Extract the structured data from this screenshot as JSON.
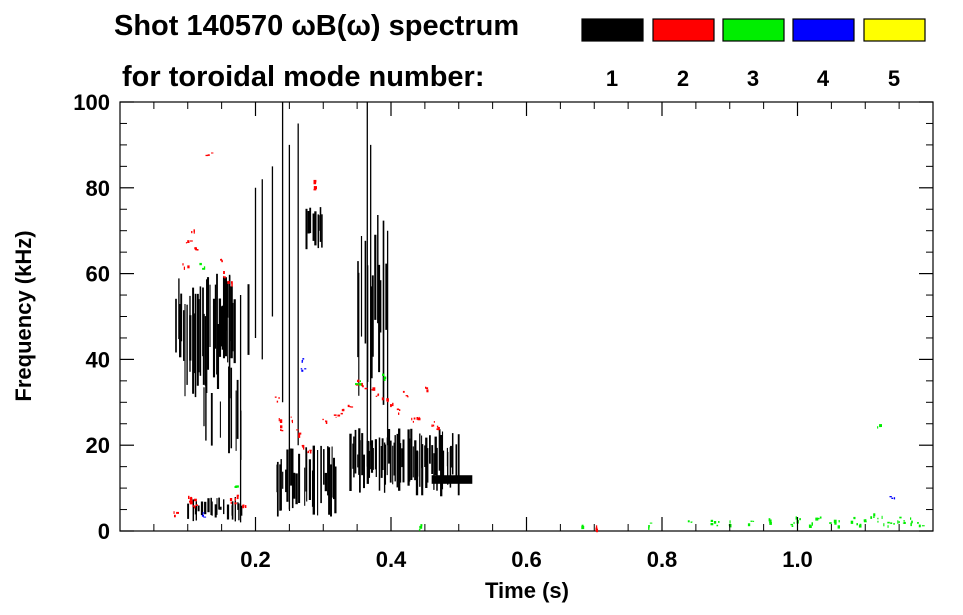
{
  "chart_data": {
    "type": "heatmap",
    "title_line1": "Shot 140570 ωB(ω) spectrum",
    "title_line2": "for toroidal mode number:",
    "xlabel": "Time (s)",
    "ylabel": "Frequency (kHz)",
    "xlim": [
      0.0,
      1.2
    ],
    "ylim": [
      0,
      100
    ],
    "x_ticks": [
      0.2,
      0.4,
      0.6,
      0.8,
      1.0
    ],
    "x_tick_labels": [
      "0.2",
      "0.4",
      "0.6",
      "0.8",
      "1.0"
    ],
    "y_ticks": [
      0,
      20,
      40,
      60,
      80,
      100
    ],
    "y_tick_labels": [
      "0",
      "20",
      "40",
      "60",
      "80",
      "100"
    ],
    "legend": {
      "placement": "top",
      "entries": [
        {
          "mode": "1",
          "color": "#000000"
        },
        {
          "mode": "2",
          "color": "#ff0000"
        },
        {
          "mode": "3",
          "color": "#00ee00"
        },
        {
          "mode": "4",
          "color": "#0000ff"
        },
        {
          "mode": "5",
          "color": "#ffff00"
        }
      ]
    },
    "series": [
      {
        "name": "1",
        "color": "#000000",
        "regions": [
          {
            "t0": 0.08,
            "t1": 0.17,
            "f0": 30,
            "f1": 60,
            "density": 0.85
          },
          {
            "t0": 0.12,
            "t1": 0.18,
            "f0": 10,
            "f1": 40,
            "density": 0.45
          },
          {
            "t0": 0.1,
            "t1": 0.18,
            "f0": 2,
            "f1": 8,
            "density": 0.6
          },
          {
            "t0": 0.15,
            "t1": 0.19,
            "f0": 40,
            "f1": 60,
            "density": 0.4
          },
          {
            "t0": 0.23,
            "t1": 0.32,
            "f0": 3,
            "f1": 20,
            "density": 0.85
          },
          {
            "t0": 0.27,
            "t1": 0.3,
            "f0": 65,
            "f1": 77,
            "density": 0.7
          },
          {
            "t0": 0.34,
            "t1": 0.5,
            "f0": 8,
            "f1": 24,
            "density": 0.9
          },
          {
            "t0": 0.35,
            "t1": 0.4,
            "f0": 28,
            "f1": 75,
            "density": 0.5
          }
        ],
        "streaks": [
          {
            "t": 0.2,
            "f0": 45,
            "f1": 80
          },
          {
            "t": 0.21,
            "f0": 40,
            "f1": 82
          },
          {
            "t": 0.225,
            "f0": 50,
            "f1": 85
          },
          {
            "t": 0.25,
            "f0": 5,
            "f1": 90
          },
          {
            "t": 0.263,
            "f0": 20,
            "f1": 95
          },
          {
            "t": 0.365,
            "f0": 15,
            "f1": 100
          },
          {
            "t": 0.37,
            "f0": 20,
            "f1": 90
          },
          {
            "t": 0.395,
            "f0": 20,
            "f1": 70
          },
          {
            "t": 0.24,
            "f0": 30,
            "f1": 100
          },
          {
            "t": 0.178,
            "f0": 2,
            "f1": 55
          }
        ],
        "band": {
          "t0": 0.46,
          "t1": 0.52,
          "f": 12,
          "w": 2
        }
      },
      {
        "name": "2",
        "color": "#ff0000",
        "points": [
          [
            0.1,
            68
          ],
          [
            0.105,
            70
          ],
          [
            0.11,
            66
          ],
          [
            0.095,
            62
          ],
          [
            0.15,
            63
          ],
          [
            0.16,
            58
          ],
          [
            0.155,
            60
          ],
          [
            0.13,
            88
          ],
          [
            0.285,
            82
          ],
          [
            0.29,
            80
          ],
          [
            0.25,
            26
          ],
          [
            0.26,
            23
          ],
          [
            0.27,
            20
          ],
          [
            0.28,
            19
          ],
          [
            0.24,
            24
          ],
          [
            0.32,
            27
          ],
          [
            0.33,
            28
          ],
          [
            0.35,
            35
          ],
          [
            0.36,
            34
          ],
          [
            0.37,
            33
          ],
          [
            0.38,
            32
          ],
          [
            0.39,
            31
          ],
          [
            0.4,
            30
          ],
          [
            0.42,
            32
          ],
          [
            0.45,
            33
          ],
          [
            0.44,
            27
          ],
          [
            0.43,
            26
          ],
          [
            0.46,
            25
          ],
          [
            0.1,
            8
          ],
          [
            0.11,
            6
          ],
          [
            0.17,
            8
          ],
          [
            0.18,
            6
          ],
          [
            0.08,
            4
          ],
          [
            0.23,
            31
          ],
          [
            0.3,
            26
          ],
          [
            0.41,
            28
          ],
          [
            0.47,
            24
          ],
          [
            0.34,
            29
          ],
          [
            0.235,
            26
          ],
          [
            0.105,
            7
          ],
          [
            0.165,
            7
          ],
          [
            0.7,
            0.8
          ]
        ]
      },
      {
        "name": "3",
        "color": "#00ee00",
        "points": [
          [
            0.17,
            10
          ],
          [
            0.12,
            62
          ],
          [
            0.35,
            35
          ],
          [
            0.39,
            36
          ],
          [
            0.68,
            1
          ],
          [
            0.78,
            1.5
          ],
          [
            0.84,
            2
          ],
          [
            0.87,
            2.5
          ],
          [
            0.9,
            2
          ],
          [
            0.93,
            2
          ],
          [
            0.96,
            2.5
          ],
          [
            0.99,
            2
          ],
          [
            1.02,
            2
          ],
          [
            1.05,
            2.5
          ],
          [
            1.08,
            3
          ],
          [
            1.1,
            2.5
          ],
          [
            1.12,
            3
          ],
          [
            1.14,
            2.5
          ],
          [
            1.16,
            2
          ],
          [
            1.18,
            1.5
          ],
          [
            1.0,
            3
          ],
          [
            1.03,
            3
          ],
          [
            1.06,
            2
          ],
          [
            1.09,
            2
          ],
          [
            1.11,
            3.5
          ],
          [
            1.13,
            2
          ],
          [
            1.15,
            3
          ],
          [
            1.17,
            2.5
          ],
          [
            0.44,
            1
          ],
          [
            0.88,
            2
          ],
          [
            1.12,
            25
          ]
        ]
      },
      {
        "name": "4",
        "color": "#0000ff",
        "points": [
          [
            0.27,
            40
          ],
          [
            0.12,
            4
          ],
          [
            1.14,
            8
          ],
          [
            0.27,
            38
          ]
        ]
      },
      {
        "name": "5",
        "color": "#ffff00",
        "points": []
      }
    ]
  }
}
